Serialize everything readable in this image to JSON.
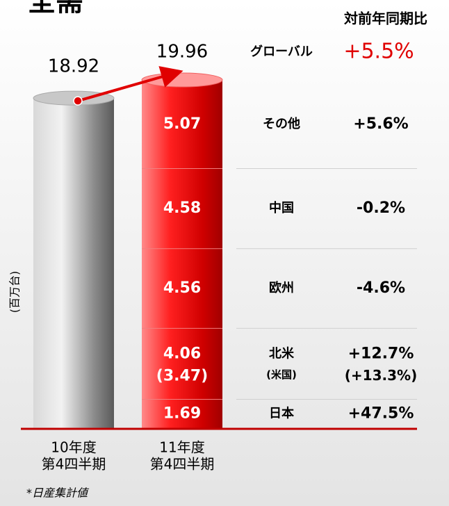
{
  "chart_data": {
    "type": "cylinder_stack",
    "title": "全需",
    "y_label": "(百万台)",
    "change_header": "対前年同期比",
    "categories": [
      [
        "10年度",
        "第4四半期"
      ],
      [
        "11年度",
        "第4四半期"
      ]
    ],
    "totals": {
      "name": "グローバル",
      "values": [
        18.92,
        19.96
      ],
      "change": "+5.5%"
    },
    "segments": [
      {
        "name": "日本",
        "value": 1.69,
        "change": "+47.5%"
      },
      {
        "name": "北米",
        "value": 4.06,
        "change": "+12.7%",
        "sub_name": "(米国)",
        "sub_value": 3.47,
        "sub_value_label": "(3.47)",
        "sub_change": "(+13.3%)"
      },
      {
        "name": "欧州",
        "value": 4.56,
        "change": "-4.6%"
      },
      {
        "name": "中国",
        "value": 4.58,
        "change": "-0.2%"
      },
      {
        "name": "その他",
        "value": 5.07,
        "change": "+5.6%"
      }
    ],
    "colors": [
      "#9a9a9a",
      "#e00000"
    ],
    "footnote": "*日産集計値"
  }
}
